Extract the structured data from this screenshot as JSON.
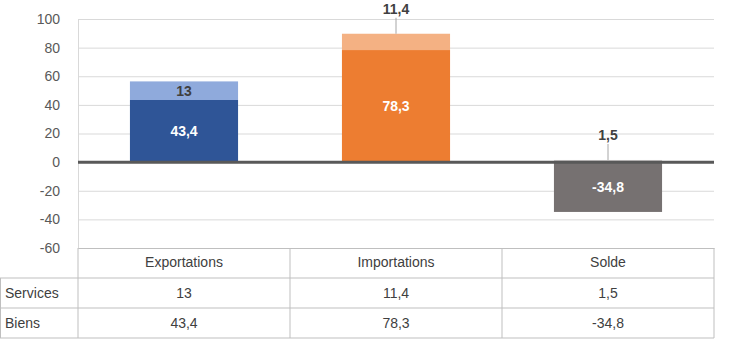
{
  "chart_data": {
    "type": "bar",
    "stacked": true,
    "data_labels": true,
    "grid": true,
    "categories": [
      "Exportations",
      "Importations",
      "Solde"
    ],
    "series": [
      {
        "name": "Services",
        "values": [
          13,
          11.4,
          1.5
        ],
        "value_labels": [
          "13",
          "11,4",
          "1,5"
        ],
        "colors": [
          "#8FAADC",
          "#F4B183",
          "#D0CECE"
        ]
      },
      {
        "name": "Biens",
        "values": [
          43.4,
          78.3,
          -34.8
        ],
        "value_labels": [
          "43,4",
          "78,3",
          "-34,8"
        ],
        "colors": [
          "#2F5597",
          "#ED7D31",
          "#767171"
        ]
      }
    ],
    "ylim": [
      -60,
      100
    ],
    "yticks": [
      -60,
      -40,
      -20,
      0,
      20,
      40,
      60,
      80,
      100
    ]
  }
}
